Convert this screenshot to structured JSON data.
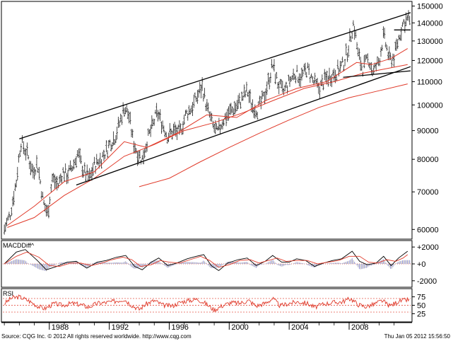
{
  "chart_data": {
    "type": "line",
    "price_panel": {
      "series_type": "ohlc",
      "y_scale": "log",
      "ylim": [
        58000,
        152000
      ],
      "y_ticks": [
        {
          "value": 150000,
          "label": "150000"
        },
        {
          "value": 140000,
          "label": "140000"
        },
        {
          "value": 130000,
          "label": "130000"
        },
        {
          "value": 120000,
          "label": "120000"
        },
        {
          "value": 110000,
          "label": "110000"
        },
        {
          "value": 100000,
          "label": "100000"
        },
        {
          "value": 90000,
          "label": "90000"
        },
        {
          "value": 80000,
          "label": "80000"
        },
        {
          "value": 70000,
          "label": "70000"
        },
        {
          "value": 60000,
          "label": "60000"
        }
      ],
      "price_path": [
        [
          1985.0,
          60000
        ],
        [
          1985.4,
          64000
        ],
        [
          1985.8,
          73000
        ],
        [
          1986.1,
          86000
        ],
        [
          1986.5,
          82000
        ],
        [
          1986.9,
          76000
        ],
        [
          1987.2,
          79000
        ],
        [
          1987.6,
          67000
        ],
        [
          1987.9,
          64000
        ],
        [
          1988.2,
          74000
        ],
        [
          1988.6,
          72000
        ],
        [
          1988.9,
          76000
        ],
        [
          1989.2,
          75000
        ],
        [
          1989.6,
          78000
        ],
        [
          1989.9,
          82000
        ],
        [
          1990.3,
          76000
        ],
        [
          1990.7,
          74000
        ],
        [
          1991.0,
          78000
        ],
        [
          1991.4,
          80000
        ],
        [
          1991.7,
          82000
        ],
        [
          1992.0,
          85000
        ],
        [
          1992.4,
          88000
        ],
        [
          1992.7,
          93000
        ],
        [
          1993.0,
          99000
        ],
        [
          1993.3,
          96000
        ],
        [
          1993.6,
          86000
        ],
        [
          1993.9,
          82000
        ],
        [
          1994.2,
          80000
        ],
        [
          1994.5,
          86000
        ],
        [
          1994.9,
          92000
        ],
        [
          1995.2,
          97000
        ],
        [
          1995.5,
          93000
        ],
        [
          1995.9,
          88000
        ],
        [
          1996.3,
          90000
        ],
        [
          1996.7,
          89000
        ],
        [
          1997.1,
          96000
        ],
        [
          1997.5,
          99000
        ],
        [
          1997.9,
          104000
        ],
        [
          1998.2,
          108000
        ],
        [
          1998.5,
          99000
        ],
        [
          1998.9,
          92000
        ],
        [
          1999.2,
          89000
        ],
        [
          1999.6,
          94000
        ],
        [
          2000.0,
          97000
        ],
        [
          2000.4,
          99000
        ],
        [
          2000.8,
          102000
        ],
        [
          2001.2,
          106000
        ],
        [
          2001.5,
          100000
        ],
        [
          2001.9,
          98000
        ],
        [
          2002.3,
          103000
        ],
        [
          2002.7,
          112000
        ],
        [
          2002.9,
          118000
        ],
        [
          2003.2,
          110000
        ],
        [
          2003.6,
          105000
        ],
        [
          2004.0,
          110000
        ],
        [
          2004.4,
          114000
        ],
        [
          2004.8,
          112000
        ],
        [
          2005.2,
          116000
        ],
        [
          2005.6,
          110000
        ],
        [
          2006.0,
          107000
        ],
        [
          2006.4,
          111000
        ],
        [
          2006.8,
          113000
        ],
        [
          2007.2,
          115000
        ],
        [
          2007.6,
          118000
        ],
        [
          2007.9,
          125000
        ],
        [
          2008.3,
          140000
        ],
        [
          2008.6,
          123000
        ],
        [
          2008.9,
          116000
        ],
        [
          2009.3,
          121000
        ],
        [
          2009.6,
          114000
        ],
        [
          2010.0,
          120000
        ],
        [
          2010.3,
          133000
        ],
        [
          2010.7,
          120000
        ],
        [
          2011.0,
          122000
        ],
        [
          2011.3,
          131000
        ],
        [
          2011.6,
          140000
        ],
        [
          2011.9,
          142000
        ]
      ],
      "moving_averages": [
        {
          "points": [
            [
              1985.2,
              61000
            ],
            [
              1987.0,
              66000
            ],
            [
              1989.0,
              73000
            ],
            [
              1991.0,
              76000
            ],
            [
              1993.0,
              86000
            ],
            [
              1994.5,
              84000
            ],
            [
              1996.5,
              89000
            ],
            [
              1998.5,
              96000
            ],
            [
              2000.5,
              95000
            ],
            [
              2002.5,
              102000
            ],
            [
              2004.5,
              107000
            ],
            [
              2006.5,
              110000
            ],
            [
              2008.5,
              119000
            ],
            [
              2009.5,
              118000
            ],
            [
              2010.8,
              121000
            ],
            [
              2011.9,
              126000
            ]
          ]
        },
        {
          "points": [
            [
              1985.2,
              60500
            ],
            [
              1987.0,
              63000
            ],
            [
              1989.0,
              69000
            ],
            [
              1991.0,
              74000
            ],
            [
              1993.0,
              81000
            ],
            [
              1995.0,
              85000
            ],
            [
              1997.0,
              90000
            ],
            [
              1999.0,
              93000
            ],
            [
              2001.0,
              97000
            ],
            [
              2003.0,
              102000
            ],
            [
              2005.0,
              107000
            ],
            [
              2007.0,
              110000
            ],
            [
              2009.0,
              114000
            ],
            [
              2011.9,
              118000
            ]
          ]
        },
        {
          "points": [
            [
              1994.0,
              71500
            ],
            [
              1996.0,
              74000
            ],
            [
              1998.0,
              79000
            ],
            [
              2000.0,
              84000
            ],
            [
              2002.0,
              89000
            ],
            [
              2004.0,
              94000
            ],
            [
              2006.0,
              99000
            ],
            [
              2008.0,
              103000
            ],
            [
              2010.0,
              106000
            ],
            [
              2011.9,
              109000
            ]
          ]
        }
      ],
      "trendlines": [
        {
          "from": [
            1986.0,
            87000
          ],
          "to": [
            2012.1,
            146000
          ]
        },
        {
          "from": [
            1989.8,
            72000
          ],
          "to": [
            2012.1,
            117000
          ]
        },
        {
          "from": [
            2007.6,
            112000
          ],
          "to": [
            2012.1,
            115000
          ]
        },
        {
          "from": [
            2011.0,
            136000
          ],
          "to": [
            2012.1,
            136000
          ]
        }
      ]
    },
    "macd_panel": {
      "label": "MACDDiff^",
      "ylim": [
        -2600,
        2600
      ],
      "y_ticks": [
        {
          "value": 2000,
          "label": "+2000"
        },
        {
          "value": 0,
          "label": "+0"
        },
        {
          "value": -2000,
          "label": "-2000"
        }
      ],
      "macd": [
        [
          1985.0,
          0
        ],
        [
          1985.8,
          1400
        ],
        [
          1986.4,
          1700
        ],
        [
          1987.2,
          400
        ],
        [
          1987.8,
          -700
        ],
        [
          1988.5,
          -300
        ],
        [
          1989.2,
          200
        ],
        [
          1989.8,
          300
        ],
        [
          1990.5,
          -500
        ],
        [
          1991.2,
          200
        ],
        [
          1991.8,
          400
        ],
        [
          1992.5,
          800
        ],
        [
          1993.1,
          1000
        ],
        [
          1993.7,
          -300
        ],
        [
          1994.2,
          -700
        ],
        [
          1994.8,
          200
        ],
        [
          1995.3,
          700
        ],
        [
          1995.9,
          -200
        ],
        [
          1996.5,
          100
        ],
        [
          1997.2,
          600
        ],
        [
          1997.8,
          900
        ],
        [
          1998.3,
          1100
        ],
        [
          1998.8,
          -200
        ],
        [
          1999.3,
          -800
        ],
        [
          1999.9,
          100
        ],
        [
          2000.6,
          500
        ],
        [
          2001.2,
          700
        ],
        [
          2001.8,
          -200
        ],
        [
          2002.4,
          300
        ],
        [
          2002.9,
          1000
        ],
        [
          2003.5,
          200
        ],
        [
          2004.0,
          200
        ],
        [
          2004.5,
          600
        ],
        [
          2005.1,
          400
        ],
        [
          2005.7,
          -300
        ],
        [
          2006.3,
          100
        ],
        [
          2006.9,
          400
        ],
        [
          2007.5,
          600
        ],
        [
          2008.2,
          1500
        ],
        [
          2008.7,
          300
        ],
        [
          2009.2,
          -100
        ],
        [
          2009.8,
          100
        ],
        [
          2010.3,
          900
        ],
        [
          2010.8,
          -200
        ],
        [
          2011.3,
          700
        ],
        [
          2011.9,
          1500
        ]
      ],
      "signal": [
        [
          1985.0,
          0
        ],
        [
          1985.8,
          900
        ],
        [
          1986.5,
          1400
        ],
        [
          1987.3,
          800
        ],
        [
          1988.0,
          -200
        ],
        [
          1988.7,
          -300
        ],
        [
          1989.4,
          100
        ],
        [
          1990.1,
          100
        ],
        [
          1990.8,
          -200
        ],
        [
          1991.5,
          100
        ],
        [
          1992.2,
          500
        ],
        [
          1992.9,
          800
        ],
        [
          1993.5,
          500
        ],
        [
          1994.1,
          -300
        ],
        [
          1994.8,
          -100
        ],
        [
          1995.4,
          400
        ],
        [
          1996.0,
          200
        ],
        [
          1996.7,
          100
        ],
        [
          1997.4,
          500
        ],
        [
          1998.1,
          900
        ],
        [
          1998.7,
          400
        ],
        [
          1999.3,
          -400
        ],
        [
          2000.0,
          -100
        ],
        [
          2000.7,
          400
        ],
        [
          2001.4,
          500
        ],
        [
          2002.0,
          100
        ],
        [
          2002.6,
          400
        ],
        [
          2003.2,
          700
        ],
        [
          2003.8,
          300
        ],
        [
          2004.5,
          400
        ],
        [
          2005.2,
          400
        ],
        [
          2005.9,
          0
        ],
        [
          2006.6,
          200
        ],
        [
          2007.3,
          400
        ],
        [
          2008.0,
          900
        ],
        [
          2008.7,
          900
        ],
        [
          2009.3,
          200
        ],
        [
          2009.9,
          100
        ],
        [
          2010.5,
          500
        ],
        [
          2011.1,
          300
        ],
        [
          2011.6,
          700
        ],
        [
          2011.9,
          1100
        ]
      ]
    },
    "rsi_panel": {
      "label": "RSI",
      "ylim": [
        5,
        95
      ],
      "y_ticks": [
        {
          "value": 75,
          "label": "75"
        },
        {
          "value": 50,
          "label": "50"
        },
        {
          "value": 25,
          "label": "25"
        }
      ],
      "reference_levels": [
        70,
        50,
        30
      ],
      "values": [
        [
          1985.0,
          55
        ],
        [
          1985.5,
          72
        ],
        [
          1986.0,
          75
        ],
        [
          1986.6,
          64
        ],
        [
          1987.2,
          48
        ],
        [
          1987.7,
          40
        ],
        [
          1988.3,
          55
        ],
        [
          1988.9,
          50
        ],
        [
          1989.5,
          56
        ],
        [
          1990.1,
          52
        ],
        [
          1990.6,
          44
        ],
        [
          1991.2,
          56
        ],
        [
          1991.8,
          58
        ],
        [
          1992.4,
          62
        ],
        [
          1993.0,
          68
        ],
        [
          1993.5,
          50
        ],
        [
          1994.0,
          38
        ],
        [
          1994.5,
          55
        ],
        [
          1995.0,
          64
        ],
        [
          1995.6,
          50
        ],
        [
          1996.2,
          48
        ],
        [
          1996.8,
          60
        ],
        [
          1997.3,
          64
        ],
        [
          1997.9,
          68
        ],
        [
          1998.4,
          56
        ],
        [
          1999.0,
          36
        ],
        [
          1999.5,
          48
        ],
        [
          2000.1,
          58
        ],
        [
          2000.7,
          56
        ],
        [
          2001.3,
          64
        ],
        [
          2001.8,
          48
        ],
        [
          2002.4,
          56
        ],
        [
          2002.9,
          70
        ],
        [
          2003.4,
          48
        ],
        [
          2004.0,
          56
        ],
        [
          2004.6,
          60
        ],
        [
          2005.2,
          56
        ],
        [
          2005.7,
          44
        ],
        [
          2006.3,
          54
        ],
        [
          2006.9,
          58
        ],
        [
          2007.5,
          60
        ],
        [
          2008.1,
          70
        ],
        [
          2008.6,
          52
        ],
        [
          2009.1,
          46
        ],
        [
          2009.6,
          52
        ],
        [
          2010.2,
          64
        ],
        [
          2010.7,
          48
        ],
        [
          2011.3,
          62
        ],
        [
          2011.9,
          66
        ]
      ]
    },
    "x_axis": {
      "xlim": [
        1984.9,
        2012.1
      ],
      "ticks": [
        {
          "value": 1988,
          "label": "1988"
        },
        {
          "value": 1992,
          "label": "1992"
        },
        {
          "value": 1996,
          "label": "1996"
        },
        {
          "value": 2000,
          "label": "2000"
        },
        {
          "value": 2004,
          "label": "2004"
        },
        {
          "value": 2008,
          "label": "2008"
        }
      ]
    }
  },
  "footer": {
    "source": "Source: CQG Inc. © 2012 All rights reserved worldwide. http://www.cqg.com",
    "timestamp": "Thu Jan 05 2012 15:56:50"
  }
}
